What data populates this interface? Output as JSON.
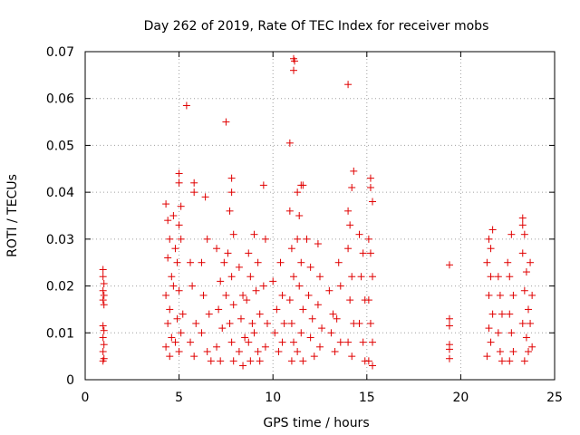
{
  "chart_data": {
    "type": "scatter",
    "title": "Day 262 of 2019, Rate Of TEC Index for receiver mobs",
    "xlabel": "GPS time / hours",
    "ylabel": "ROTI / TECUs",
    "xlim": [
      0,
      25
    ],
    "ylim": [
      0,
      0.07
    ],
    "xticks": [
      0,
      5,
      10,
      15,
      20,
      25
    ],
    "yticks": [
      0,
      0.01,
      0.02,
      0.03,
      0.04,
      0.05,
      0.06,
      0.07
    ],
    "xtick_labels": [
      "0",
      "5",
      "10",
      "15",
      "20",
      "25"
    ],
    "ytick_labels": [
      "0",
      "0.01",
      "0.02",
      "0.03",
      "0.04",
      "0.05",
      "0.06",
      "0.07"
    ],
    "grid": true,
    "marker": "+",
    "color": "#e00000",
    "series": [
      {
        "points": [
          [
            0.95,
            0.0235
          ],
          [
            0.95,
            0.022
          ],
          [
            1.0,
            0.0205
          ],
          [
            0.95,
            0.019
          ],
          [
            1.0,
            0.018
          ],
          [
            0.95,
            0.017
          ],
          [
            1.0,
            0.016
          ],
          [
            0.95,
            0.0115
          ],
          [
            1.0,
            0.0105
          ],
          [
            0.95,
            0.009
          ],
          [
            1.0,
            0.0075
          ],
          [
            0.95,
            0.006
          ],
          [
            1.0,
            0.0045
          ],
          [
            0.95,
            0.004
          ],
          [
            4.3,
            0.0375
          ],
          [
            4.4,
            0.034
          ],
          [
            4.5,
            0.03
          ],
          [
            4.4,
            0.026
          ],
          [
            4.6,
            0.022
          ],
          [
            4.3,
            0.018
          ],
          [
            4.5,
            0.015
          ],
          [
            4.4,
            0.012
          ],
          [
            4.6,
            0.009
          ],
          [
            4.3,
            0.007
          ],
          [
            4.5,
            0.005
          ],
          [
            4.7,
            0.035
          ],
          [
            4.8,
            0.028
          ],
          [
            4.7,
            0.02
          ],
          [
            4.9,
            0.013
          ],
          [
            4.8,
            0.008
          ],
          [
            5.0,
            0.044
          ],
          [
            5.0,
            0.042
          ],
          [
            5.1,
            0.037
          ],
          [
            5.0,
            0.033
          ],
          [
            5.1,
            0.03
          ],
          [
            4.9,
            0.025
          ],
          [
            5.0,
            0.019
          ],
          [
            5.2,
            0.014
          ],
          [
            5.1,
            0.01
          ],
          [
            5.0,
            0.006
          ],
          [
            5.4,
            0.0585
          ],
          [
            5.6,
            0.025
          ],
          [
            5.8,
            0.042
          ],
          [
            5.8,
            0.04
          ],
          [
            5.7,
            0.02
          ],
          [
            5.9,
            0.012
          ],
          [
            5.6,
            0.008
          ],
          [
            5.8,
            0.005
          ],
          [
            6.2,
            0.025
          ],
          [
            6.4,
            0.039
          ],
          [
            6.5,
            0.03
          ],
          [
            6.3,
            0.018
          ],
          [
            6.6,
            0.014
          ],
          [
            6.2,
            0.01
          ],
          [
            6.5,
            0.006
          ],
          [
            6.7,
            0.004
          ],
          [
            7.0,
            0.028
          ],
          [
            7.2,
            0.021
          ],
          [
            7.1,
            0.015
          ],
          [
            7.3,
            0.011
          ],
          [
            7.0,
            0.007
          ],
          [
            7.2,
            0.004
          ],
          [
            7.4,
            0.025
          ],
          [
            7.5,
            0.018
          ],
          [
            7.5,
            0.055
          ],
          [
            7.8,
            0.043
          ],
          [
            7.8,
            0.04
          ],
          [
            7.7,
            0.036
          ],
          [
            7.9,
            0.031
          ],
          [
            7.6,
            0.027
          ],
          [
            7.8,
            0.022
          ],
          [
            7.9,
            0.016
          ],
          [
            7.7,
            0.012
          ],
          [
            7.8,
            0.008
          ],
          [
            7.9,
            0.004
          ],
          [
            8.2,
            0.024
          ],
          [
            8.4,
            0.018
          ],
          [
            8.3,
            0.013
          ],
          [
            8.5,
            0.009
          ],
          [
            8.2,
            0.006
          ],
          [
            8.4,
            0.003
          ],
          [
            8.7,
            0.027
          ],
          [
            8.8,
            0.022
          ],
          [
            8.6,
            0.017
          ],
          [
            8.9,
            0.012
          ],
          [
            8.7,
            0.008
          ],
          [
            8.8,
            0.004
          ],
          [
            9.0,
            0.031
          ],
          [
            9.2,
            0.025
          ],
          [
            9.1,
            0.019
          ],
          [
            9.3,
            0.014
          ],
          [
            9.0,
            0.01
          ],
          [
            9.2,
            0.006
          ],
          [
            9.3,
            0.004
          ],
          [
            9.5,
            0.0415
          ],
          [
            9.6,
            0.03
          ],
          [
            9.5,
            0.02
          ],
          [
            9.7,
            0.012
          ],
          [
            9.6,
            0.007
          ],
          [
            10.0,
            0.021
          ],
          [
            10.2,
            0.015
          ],
          [
            10.1,
            0.01
          ],
          [
            10.3,
            0.006
          ],
          [
            10.4,
            0.025
          ],
          [
            10.5,
            0.018
          ],
          [
            10.6,
            0.012
          ],
          [
            10.5,
            0.008
          ],
          [
            10.9,
            0.0505
          ],
          [
            10.9,
            0.036
          ],
          [
            11.0,
            0.028
          ],
          [
            11.1,
            0.022
          ],
          [
            10.9,
            0.017
          ],
          [
            11.0,
            0.012
          ],
          [
            11.1,
            0.008
          ],
          [
            11.0,
            0.004
          ],
          [
            11.1,
            0.0685
          ],
          [
            11.15,
            0.068
          ],
          [
            11.1,
            0.066
          ],
          [
            11.3,
            0.04
          ],
          [
            11.5,
            0.0415
          ],
          [
            11.6,
            0.0415
          ],
          [
            11.4,
            0.035
          ],
          [
            11.3,
            0.03
          ],
          [
            11.5,
            0.025
          ],
          [
            11.4,
            0.02
          ],
          [
            11.6,
            0.015
          ],
          [
            11.5,
            0.01
          ],
          [
            11.3,
            0.006
          ],
          [
            11.6,
            0.004
          ],
          [
            11.8,
            0.03
          ],
          [
            12.0,
            0.024
          ],
          [
            11.9,
            0.018
          ],
          [
            12.1,
            0.013
          ],
          [
            12.0,
            0.009
          ],
          [
            12.2,
            0.005
          ],
          [
            12.4,
            0.029
          ],
          [
            12.5,
            0.022
          ],
          [
            12.4,
            0.016
          ],
          [
            12.6,
            0.011
          ],
          [
            12.5,
            0.007
          ],
          [
            13.0,
            0.019
          ],
          [
            13.2,
            0.014
          ],
          [
            13.1,
            0.01
          ],
          [
            13.3,
            0.006
          ],
          [
            13.5,
            0.025
          ],
          [
            13.6,
            0.02
          ],
          [
            13.4,
            0.013
          ],
          [
            13.6,
            0.008
          ],
          [
            14.0,
            0.063
          ],
          [
            14.0,
            0.036
          ],
          [
            14.1,
            0.033
          ],
          [
            14.3,
            0.0445
          ],
          [
            14.2,
            0.041
          ],
          [
            14.0,
            0.028
          ],
          [
            14.2,
            0.022
          ],
          [
            14.1,
            0.017
          ],
          [
            14.3,
            0.012
          ],
          [
            14.0,
            0.008
          ],
          [
            14.2,
            0.005
          ],
          [
            14.6,
            0.031
          ],
          [
            14.8,
            0.027
          ],
          [
            14.7,
            0.022
          ],
          [
            14.9,
            0.017
          ],
          [
            14.6,
            0.012
          ],
          [
            14.8,
            0.008
          ],
          [
            14.9,
            0.004
          ],
          [
            15.2,
            0.043
          ],
          [
            15.2,
            0.041
          ],
          [
            15.3,
            0.038
          ],
          [
            15.1,
            0.03
          ],
          [
            15.2,
            0.027
          ],
          [
            15.3,
            0.022
          ],
          [
            15.1,
            0.017
          ],
          [
            15.2,
            0.012
          ],
          [
            15.3,
            0.008
          ],
          [
            15.1,
            0.004
          ],
          [
            15.3,
            0.003
          ],
          [
            19.4,
            0.0245
          ],
          [
            19.4,
            0.013
          ],
          [
            19.4,
            0.0115
          ],
          [
            19.4,
            0.0075
          ],
          [
            19.4,
            0.0065
          ],
          [
            19.4,
            0.0045
          ],
          [
            21.5,
            0.03
          ],
          [
            21.7,
            0.032
          ],
          [
            21.6,
            0.028
          ],
          [
            21.4,
            0.025
          ],
          [
            21.6,
            0.022
          ],
          [
            21.5,
            0.018
          ],
          [
            21.7,
            0.014
          ],
          [
            21.5,
            0.011
          ],
          [
            21.6,
            0.008
          ],
          [
            21.4,
            0.005
          ],
          [
            22.0,
            0.022
          ],
          [
            22.1,
            0.018
          ],
          [
            22.2,
            0.014
          ],
          [
            22.0,
            0.01
          ],
          [
            22.1,
            0.006
          ],
          [
            22.2,
            0.004
          ],
          [
            22.5,
            0.025
          ],
          [
            22.7,
            0.031
          ],
          [
            22.6,
            0.022
          ],
          [
            22.8,
            0.018
          ],
          [
            22.6,
            0.014
          ],
          [
            22.7,
            0.01
          ],
          [
            22.8,
            0.006
          ],
          [
            22.6,
            0.004
          ],
          [
            23.3,
            0.0345
          ],
          [
            23.3,
            0.033
          ],
          [
            23.4,
            0.031
          ],
          [
            23.3,
            0.027
          ],
          [
            23.5,
            0.023
          ],
          [
            23.4,
            0.019
          ],
          [
            23.6,
            0.015
          ],
          [
            23.3,
            0.012
          ],
          [
            23.5,
            0.009
          ],
          [
            23.6,
            0.006
          ],
          [
            23.4,
            0.004
          ],
          [
            23.7,
            0.025
          ],
          [
            23.8,
            0.018
          ],
          [
            23.7,
            0.012
          ],
          [
            23.8,
            0.007
          ]
        ]
      }
    ]
  }
}
